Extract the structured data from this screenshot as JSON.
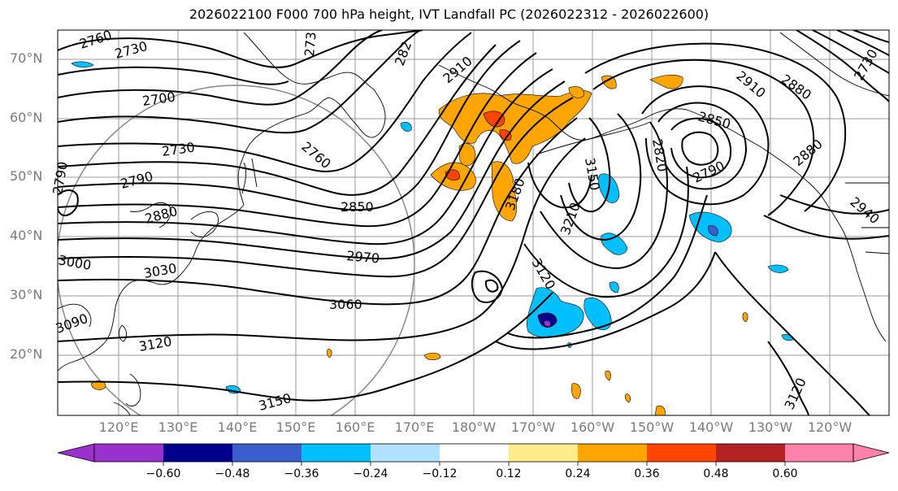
{
  "title": "2026022100 F000 700 hPa height, IVT Landfall PC (2026022312 - 2026022600)",
  "lat_labels": [
    "70°N",
    "60°N",
    "50°N",
    "40°N",
    "30°N",
    "20°N"
  ],
  "lon_labels": [
    "120°E",
    "130°E",
    "140°E",
    "150°E",
    "160°E",
    "170°E",
    "180°W",
    "170°W",
    "160°W",
    "150°W",
    "140°W",
    "130°W",
    "120°W"
  ],
  "contour_labels": [
    "2760",
    "2730",
    "2700",
    "2730",
    "2790",
    "2880",
    "3000",
    "3030",
    "2850",
    "2970",
    "3060",
    "3120",
    "3150",
    "2760",
    "273",
    "282",
    "2910",
    "3180",
    "3120",
    "3210",
    "3150",
    "2820",
    "2790",
    "2850",
    "2910",
    "2880",
    "2880",
    "2940",
    "3090",
    "2790",
    "3120",
    "2730"
  ],
  "colorbar": {
    "colors": [
      "#9932cc",
      "#00008b",
      "#3a5fcd",
      "#00bfff",
      "#b0e2ff",
      "#ffffff",
      "#ffec8b",
      "#ffa500",
      "#ff4500",
      "#b22222",
      "#ff82ab"
    ],
    "ticks": [
      "−0.60",
      "−0.48",
      "−0.36",
      "−0.24",
      "−0.12",
      "0.12",
      "0.24",
      "0.36",
      "0.48",
      "0.60"
    ]
  }
}
